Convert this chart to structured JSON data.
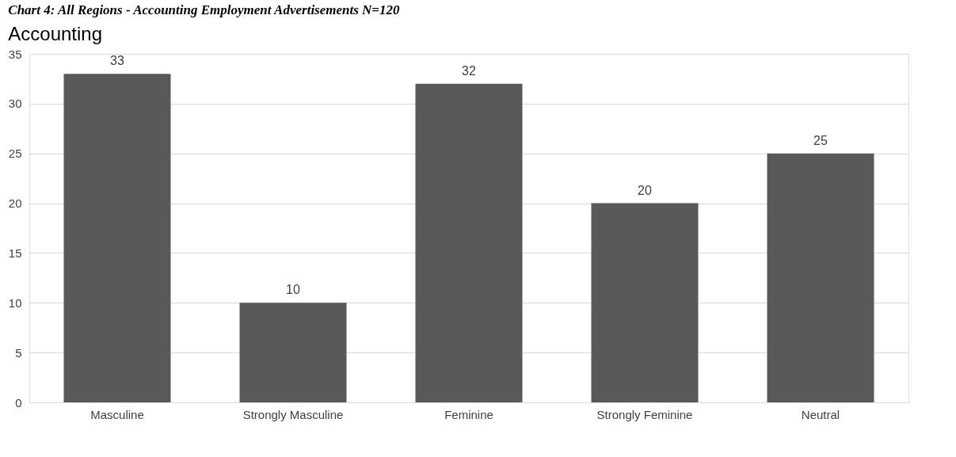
{
  "chart_data": {
    "type": "bar",
    "title": "Accounting",
    "annotations": [
      "Chart 4: All Regions - Accounting Employment Advertisements N=120"
    ],
    "categories": [
      "Masculine",
      "Strongly Masculine",
      "Feminine",
      "Strongly Feminine",
      "Neutral"
    ],
    "values": [
      33,
      10,
      32,
      20,
      25
    ],
    "color": "#595959",
    "ylim": [
      0,
      35
    ],
    "yticks": [
      0,
      5,
      10,
      15,
      20,
      25,
      30,
      35
    ],
    "grid": "y",
    "data_labels": true
  }
}
